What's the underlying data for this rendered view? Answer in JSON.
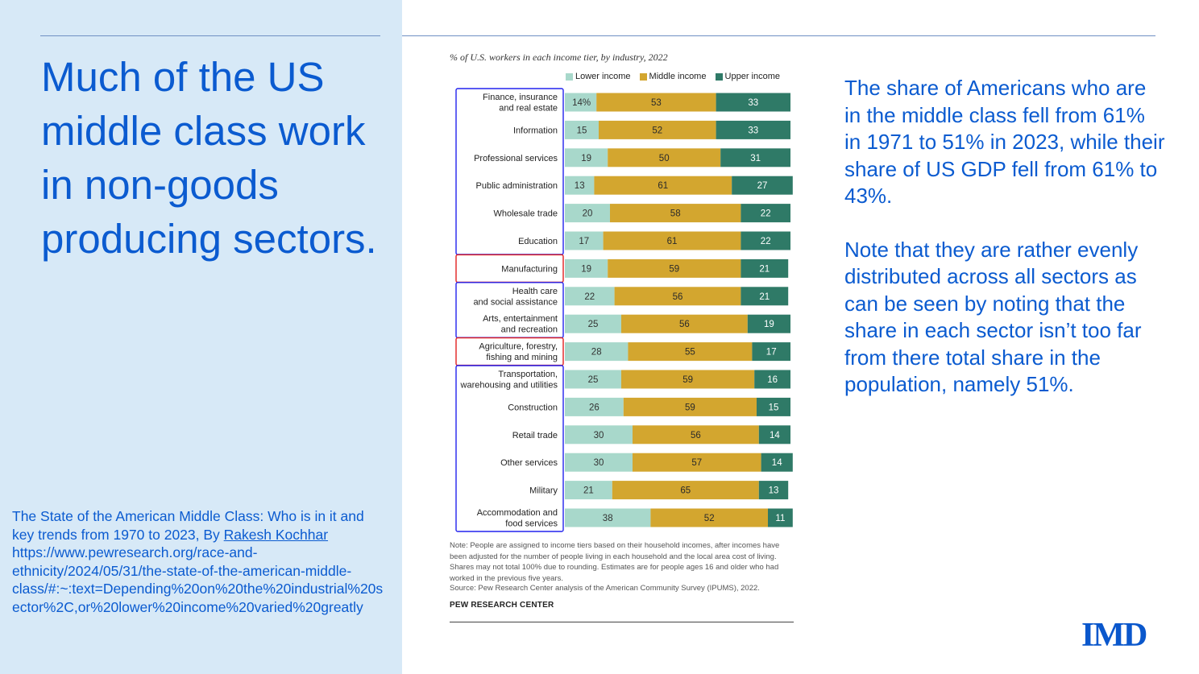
{
  "slide": {
    "headline": "Much of the US middle class work in non-goods producing sectors.",
    "source": {
      "prefix": "The State of the American Middle Class: Who is in it and key trends from 1970 to 2023, By ",
      "author": "Rakesh Kochhar",
      "url": "https://www.pewresearch.org/race-and-ethnicity/2024/05/31/the-state-of-the-american-middle-class/#:~:text=Depending%20on%20the%20industrial%20sector%2C,or%20lower%20income%20varied%20greatly"
    },
    "commentary": [
      "The share of Americans who are in the middle class fell from 61% in 1971 to 51% in 2023, while their share of US GDP fell from 61% to 43%.",
      "Note that they are rather evenly distributed across all sectors as can be seen by noting that the share in each sector isn’t too far from there total share in the population, namely 51%."
    ],
    "logo": "IMD"
  },
  "colors": {
    "lower": "#a8d8cb",
    "middle": "#d3a62f",
    "upper": "#2f7a67",
    "accent": "#0b5bd0",
    "annot_blue": "#2222ee",
    "annot_red": "#e02020"
  },
  "chart_data": {
    "type": "bar",
    "orientation": "horizontal",
    "stacked": true,
    "title": "% of U.S. workers in each income tier, by industry, 2022",
    "categories": [
      "Finance, insurance and real estate",
      "Information",
      "Professional services",
      "Public administration",
      "Wholesale trade",
      "Education",
      "Manufacturing",
      "Health care and social assistance",
      "Arts, entertainment and recreation",
      "Agriculture, forestry, fishing and mining",
      "Transportation, warehousing and utilities",
      "Construction",
      "Retail trade",
      "Other services",
      "Military",
      "Accommodation and food services"
    ],
    "category_lines": [
      [
        "Finance, insurance",
        "and real estate"
      ],
      [
        "Information"
      ],
      [
        "Professional services"
      ],
      [
        "Public administration"
      ],
      [
        "Wholesale trade"
      ],
      [
        "Education"
      ],
      [
        "Manufacturing"
      ],
      [
        "Health care",
        "and social assistance"
      ],
      [
        "Arts, entertainment",
        "and recreation"
      ],
      [
        "Agriculture, forestry,",
        "fishing and mining"
      ],
      [
        "Transportation,",
        "warehousing and utilities"
      ],
      [
        "Construction"
      ],
      [
        "Retail trade"
      ],
      [
        "Other services"
      ],
      [
        "Military"
      ],
      [
        "Accommodation and",
        "food services"
      ]
    ],
    "series": [
      {
        "name": "Lower income",
        "key": "lower",
        "values": [
          14,
          15,
          19,
          13,
          20,
          17,
          19,
          22,
          25,
          28,
          25,
          26,
          30,
          30,
          21,
          38
        ]
      },
      {
        "name": "Middle income",
        "key": "middle",
        "values": [
          53,
          52,
          50,
          61,
          58,
          61,
          59,
          56,
          56,
          55,
          59,
          59,
          56,
          57,
          65,
          52
        ]
      },
      {
        "name": "Upper income",
        "key": "upper",
        "values": [
          33,
          33,
          31,
          27,
          22,
          22,
          21,
          21,
          19,
          17,
          16,
          15,
          14,
          14,
          13,
          11
        ]
      }
    ],
    "value_suffix_first": "%",
    "xlim": [
      0,
      100
    ],
    "note": "Note: People are assigned to income tiers based on their household incomes, after incomes have been adjusted for the number of people living in each household and the local area cost of living. Shares may not total 100% due to rounding. Estimates are for people ages 16 and older who had worked in the previous five years.",
    "source": "Source: Pew Research Center analysis of the American Community Survey (IPUMS), 2022.",
    "brand": "PEW RESEARCH CENTER",
    "annotation_groups": [
      {
        "color": "blue",
        "from": 0,
        "to": 5
      },
      {
        "color": "red",
        "from": 6,
        "to": 6
      },
      {
        "color": "blue",
        "from": 7,
        "to": 8
      },
      {
        "color": "red",
        "from": 9,
        "to": 9
      },
      {
        "color": "blue",
        "from": 10,
        "to": 15
      }
    ]
  }
}
